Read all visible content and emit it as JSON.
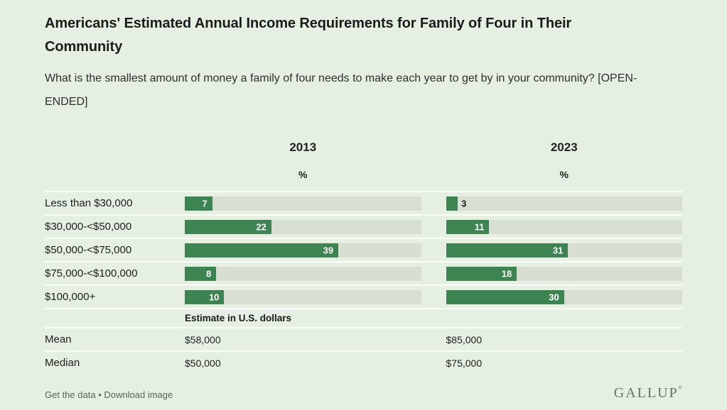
{
  "page": {
    "title": "Americans' Estimated Annual Income Requirements for Family of Four in Their Community",
    "subtitle": "What is the smallest amount of money a family of four needs to make each year to get by in your community? [OPEN-ENDED]"
  },
  "chart_data": {
    "type": "bar",
    "title": "Americans' Estimated Annual Income Requirements for Family of Four in Their Community",
    "subtitle": "What is the smallest amount of money a family of four needs to make each year to get by in your community? [OPEN-ENDED]",
    "orientation": "horizontal",
    "columns": [
      {
        "label": "2013",
        "unit": "%"
      },
      {
        "label": "2023",
        "unit": "%"
      }
    ],
    "categories": [
      "Less than $30,000",
      "$30,000-<$50,000",
      "$50,000-<$75,000",
      "$75,000-<$100,000",
      "$100,000+"
    ],
    "series": [
      {
        "name": "2013",
        "values": [
          7,
          22,
          39,
          8,
          10
        ]
      },
      {
        "name": "2023",
        "values": [
          3,
          11,
          31,
          18,
          30
        ]
      }
    ],
    "xlim": [
      0,
      60
    ],
    "grid": false,
    "estimate_header": "Estimate in U.S. dollars",
    "stats": [
      {
        "label": "Mean",
        "values": [
          "$58,000",
          "$85,000"
        ]
      },
      {
        "label": "Median",
        "values": [
          "$50,000",
          "$75,000"
        ]
      }
    ]
  },
  "footer": {
    "link_data": "Get the data",
    "separator": "•",
    "link_image": "Download image",
    "logo": "GALLUP",
    "logo_tm": "®"
  },
  "colors": {
    "background": "#e5f0e2",
    "bar": "#3d8452",
    "track": "#d9ded2",
    "separator": "#fafcf7"
  }
}
